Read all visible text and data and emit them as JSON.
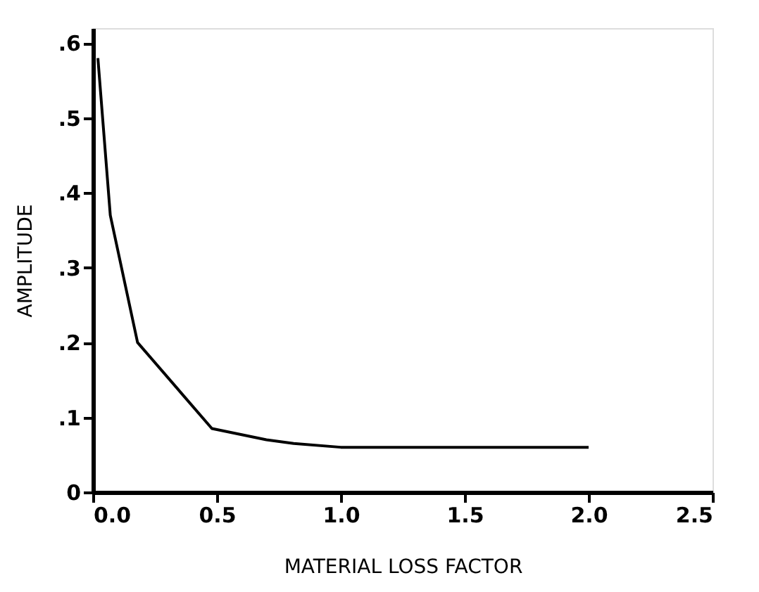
{
  "chart_data": {
    "type": "line",
    "xlabel": "MATERIAL LOSS FACTOR",
    "ylabel": "AMPLITUDE",
    "x": [
      0.02,
      0.07,
      0.18,
      0.48,
      0.7,
      0.81,
      1.0,
      1.5,
      2.0
    ],
    "values": [
      0.58,
      0.37,
      0.2,
      0.085,
      0.07,
      0.065,
      0.06,
      0.06,
      0.06
    ],
    "color": "#000000",
    "xlim": [
      0,
      2.5
    ],
    "ylim": [
      0,
      0.62
    ],
    "xticks": [
      {
        "value": 0,
        "label": "0.0"
      },
      {
        "value": 0.5,
        "label": "0.5"
      },
      {
        "value": 1,
        "label": "1.0"
      },
      {
        "value": 1.5,
        "label": "1.5"
      },
      {
        "value": 2,
        "label": "2.0"
      },
      {
        "value": 2.5,
        "label": "2.5"
      }
    ],
    "yticks": [
      0,
      {
        "value": 0.1,
        "label": ".1"
      },
      {
        "value": 0.2,
        "label": ".2"
      },
      {
        "value": 0.3,
        "label": ".3"
      },
      {
        "value": 0.4,
        "label": ".4"
      },
      {
        "value": 0.5,
        "label": ".5"
      },
      {
        "value": 0.6,
        "label": ".6"
      }
    ],
    "grid": false,
    "marker": "none",
    "line_style": "solid"
  }
}
